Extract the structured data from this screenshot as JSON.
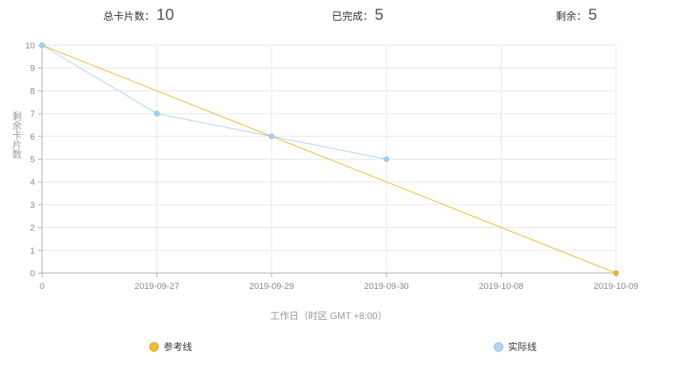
{
  "stats": {
    "total_label": "总卡片数：",
    "total_value": "10",
    "done_label": "已完成：",
    "done_value": "5",
    "remaining_label": "剩余：",
    "remaining_value": "5"
  },
  "chart_data": {
    "type": "line",
    "title": "",
    "xlabel": "工作日（时区 GMT +8:00）",
    "ylabel": "剩余卡片数",
    "categories": [
      "0",
      "2019-09-27",
      "2019-09-29",
      "2019-09-30",
      "2019-10-08",
      "2019-10-09"
    ],
    "ylim": [
      0,
      10
    ],
    "yticks": [
      0,
      1,
      2,
      3,
      4,
      5,
      6,
      7,
      8,
      9,
      10
    ],
    "grid": true,
    "legend_position": "bottom",
    "series": [
      {
        "name": "参考线",
        "color": "#e8b92e",
        "values": [
          10,
          null,
          null,
          null,
          null,
          0
        ],
        "connect": true
      },
      {
        "name": "实际线",
        "color": "#a8d1f0",
        "values": [
          10,
          7,
          6,
          5,
          null,
          null
        ]
      }
    ]
  }
}
